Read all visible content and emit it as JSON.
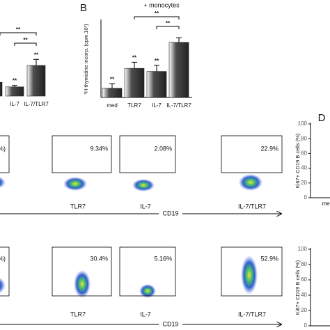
{
  "chart_data": [
    {
      "type": "bar",
      "categories": [
        null,
        "IL-7",
        "IL-7/TLR7"
      ],
      "values": [
        9,
        6,
        20
      ],
      "errors": [
        2,
        1,
        4
      ],
      "value_annotations": [
        null,
        "**",
        "**"
      ],
      "brackets": [
        {
          "from": null,
          "to": "IL-7/TLR7",
          "label": "**"
        },
        {
          "from": "IL-7",
          "to": "IL-7/TLR7",
          "label": "**"
        }
      ],
      "ylim": [
        0,
        50
      ],
      "color": "#4d4d4d"
    },
    {
      "type": "bar",
      "panel": "B",
      "title": "+ monocytes",
      "y_label": "³H-thymidine incorp. (cpm.10³)",
      "categories": [
        "med",
        "TLR7",
        "IL-7",
        "IL-7/TLR7"
      ],
      "values": [
        6,
        19,
        17,
        36
      ],
      "errors": [
        3,
        4,
        4,
        3
      ],
      "value_annotations": [
        "**",
        "**",
        "**",
        null
      ],
      "brackets": [
        {
          "from": "TLR7",
          "to": "IL-7/TLR7",
          "label": "**"
        },
        {
          "from": "IL-7",
          "to": "IL-7/TLR7",
          "label": "**"
        }
      ],
      "ylim": [
        0,
        50
      ],
      "color": "#4d4d4d"
    },
    {
      "type": "bar",
      "panel": "D",
      "y_label": "Ki67+ CD19 B cells (%)",
      "categories": [
        "me"
      ],
      "ylim": [
        0,
        100
      ],
      "yticks": [
        0,
        20,
        40,
        60,
        80,
        100
      ]
    },
    {
      "type": "bar",
      "y_label": "Ki67+ CD19 B cells (%)",
      "categories": [],
      "ylim": [
        0,
        100
      ],
      "yticks": [
        0,
        20,
        40,
        60,
        80,
        100
      ]
    }
  ],
  "flow_panels": {
    "x_label": "CD19",
    "rows": [
      [
        {
          "gate": "%)",
          "label": null
        },
        {
          "gate": "9.34%",
          "label": "TLR7"
        },
        {
          "gate": "2.08%",
          "label": "IL-7"
        },
        {
          "gate": "22.9%",
          "label": "IL-7/TLR7"
        }
      ],
      [
        {
          "gate": "%)",
          "label": null
        },
        {
          "gate": "30.4%",
          "label": "TLR7"
        },
        {
          "gate": "5.16%",
          "label": "IL-7"
        },
        {
          "gate": "52.9%",
          "label": "IL-7/TLR7"
        }
      ]
    ]
  }
}
